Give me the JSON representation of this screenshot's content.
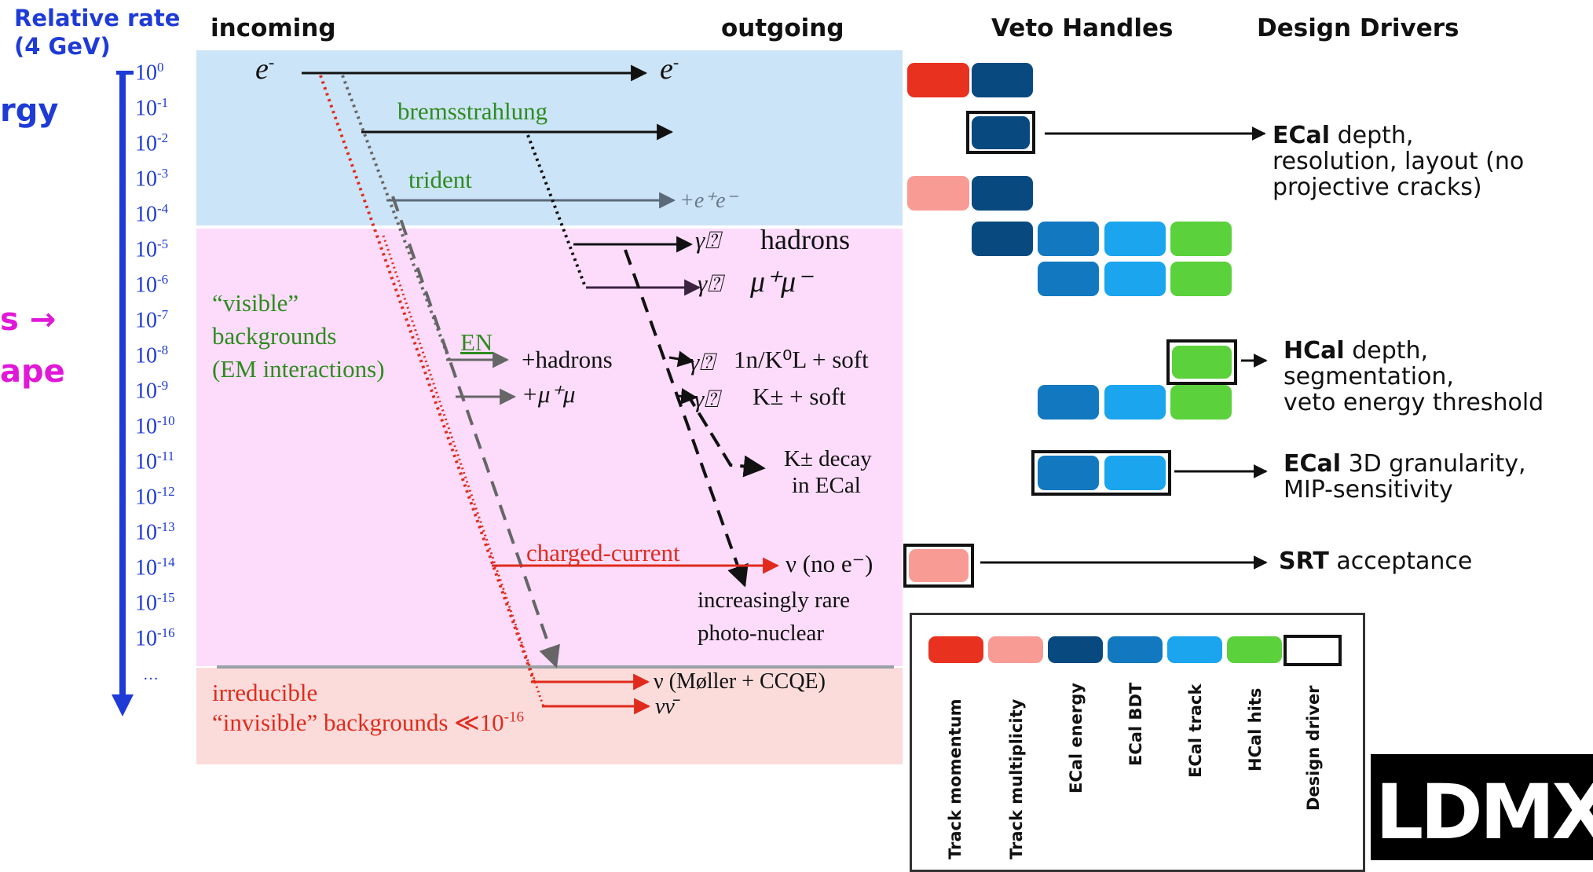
{
  "colors": {
    "track_momentum": "#e8311f",
    "track_multiplicity": "#f99b95",
    "ecal_energy": "#084a7f",
    "ecal_bdt": "#1279c1",
    "ecal_track": "#1aa5ee",
    "hcal_hits": "#5bd13b",
    "rate_axis": "#1f3bd6",
    "incoming_band": "#cce4f7",
    "visible_band": "#fcdcfa",
    "invisible_band": "#fbdcdb"
  },
  "left_cut": {
    "word1": "rgy",
    "word2": "s →",
    "word3": "ape"
  },
  "headers": {
    "rate_line1": "Relative rate",
    "rate_line2": "(4 GeV)",
    "incoming": "incoming",
    "outgoing": "outgoing",
    "veto": "Veto Handles",
    "drivers": "Design Drivers"
  },
  "rate_ticks": [
    {
      "base": "10",
      "exp": "0"
    },
    {
      "base": "10",
      "exp": "-1"
    },
    {
      "base": "10",
      "exp": "-2"
    },
    {
      "base": "10",
      "exp": "-3"
    },
    {
      "base": "10",
      "exp": "-4"
    },
    {
      "base": "10",
      "exp": "-5"
    },
    {
      "base": "10",
      "exp": "-6"
    },
    {
      "base": "10",
      "exp": "-7"
    },
    {
      "base": "10",
      "exp": "-8"
    },
    {
      "base": "10",
      "exp": "-9"
    },
    {
      "base": "10",
      "exp": "-10"
    },
    {
      "base": "10",
      "exp": "-11"
    },
    {
      "base": "10",
      "exp": "-12"
    },
    {
      "base": "10",
      "exp": "-13"
    },
    {
      "base": "10",
      "exp": "-14"
    },
    {
      "base": "10",
      "exp": "-15"
    },
    {
      "base": "10",
      "exp": "-16"
    }
  ],
  "rate_ellipsis": "…",
  "processes": {
    "e_in": "e",
    "e_in_sup": "-",
    "e_out": "e",
    "e_out_sup": "-",
    "brems": "bremsstrahlung",
    "trident": "trident",
    "trident_out": "+e⁺e⁻",
    "gamma_hadrons_sym": "γ⍰",
    "gamma_hadrons": "hadrons",
    "gamma_mumu_sym": "γ⍰",
    "gamma_mumu": "μ⁺μ⁻",
    "visible1": "“visible”",
    "visible2": "backgrounds",
    "visible3": "(EM interactions)",
    "en": "EN",
    "en_hadrons": "+hadrons",
    "en_mumu": "+μ⁺μ",
    "pn_neutral_sym": "γ⍰",
    "pn_neutral": "1n/K⁰L + soft",
    "pn_charged_sym": "γ⍰",
    "pn_charged": "K± + soft",
    "kdecay1": "K± decay",
    "kdecay2": "in ECal",
    "cc": "charged-current",
    "cc_out": "ν (no e⁻)",
    "rare1": "increasingly rare",
    "rare2": "photo-nuclear",
    "irr1": "irreducible",
    "irr2": "“invisible” backgrounds ≪10",
    "irr2_exp": "-16",
    "moller": "ν (Møller + CCQE)",
    "nunubar": "νν̄"
  },
  "drivers": {
    "d1_bold": "ECal",
    "d1_line1": " depth,",
    "d1_line2": "resolution, layout (no",
    "d1_line3": "projective cracks)",
    "d2_bold": "HCal",
    "d2_line1": " depth,",
    "d2_line2": "segmentation,",
    "d2_line3": "veto energy threshold",
    "d3_bold": "ECal",
    "d3_line1": " 3D granularity,",
    "d3_line2": "MIP-sensitivity",
    "d4_bold": "SRT",
    "d4_line1": " acceptance"
  },
  "legend": [
    {
      "label": "Track momentum",
      "color": "#e8311f"
    },
    {
      "label": "Track multiplicity",
      "color": "#f99b95"
    },
    {
      "label": "ECal energy",
      "color": "#084a7f"
    },
    {
      "label": "ECal BDT",
      "color": "#1279c1"
    },
    {
      "label": "ECal track",
      "color": "#1aa5ee"
    },
    {
      "label": "HCal hits",
      "color": "#5bd13b"
    },
    {
      "label": "Design driver",
      "color": "#ffffff"
    }
  ],
  "logo": "LDMX"
}
